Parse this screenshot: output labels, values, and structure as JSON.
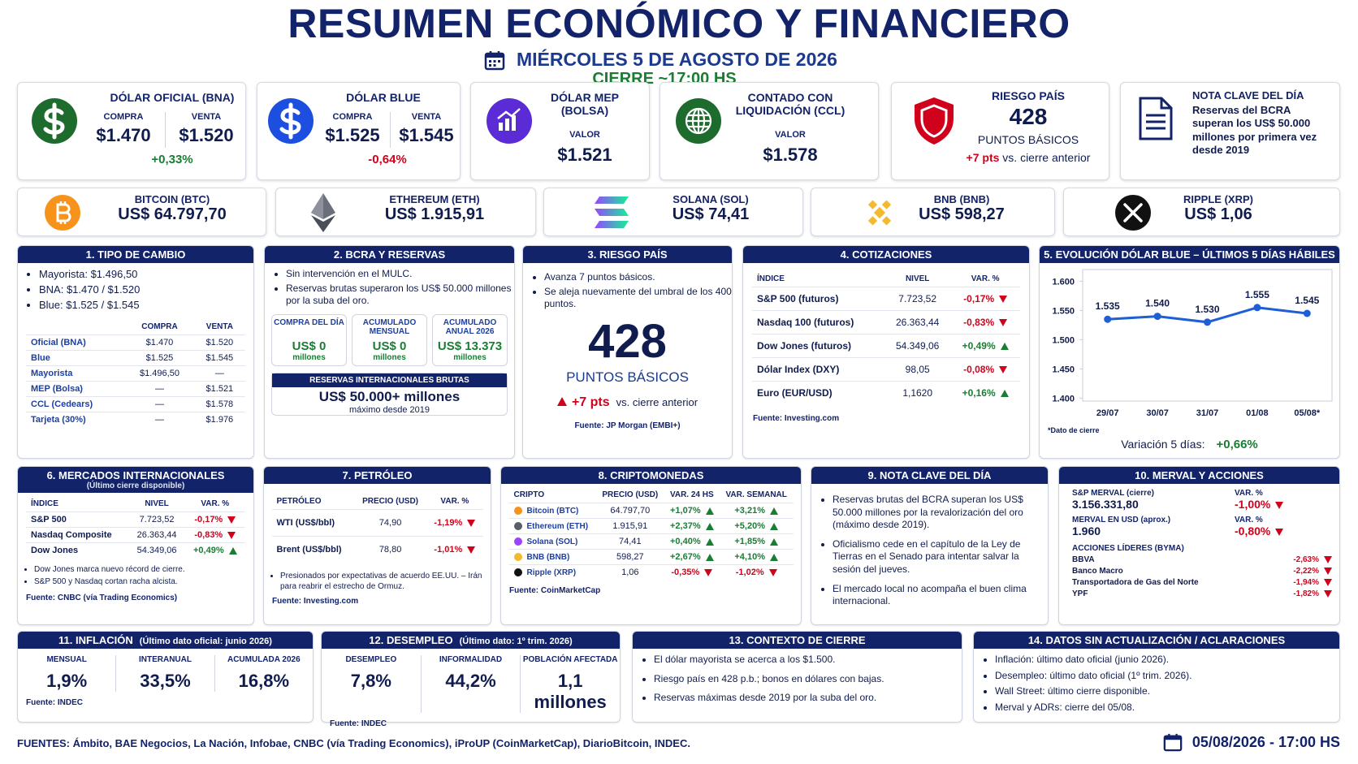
{
  "header": {
    "title": "RESUMEN ECONÓMICO Y FINANCIERO",
    "date": "MIÉRCOLES 5 DE AGOSTO DE 2026",
    "close": "CIERRE ~17:00 HS"
  },
  "top_cards": {
    "oficial": {
      "title": "DÓLAR OFICIAL (BNA)",
      "buy_label": "COMPRA",
      "buy": "$1.470",
      "sell_label": "VENTA",
      "sell": "$1.520",
      "change": "+0,33%"
    },
    "blue": {
      "title": "DÓLAR BLUE",
      "buy_label": "COMPRA",
      "buy": "$1.525",
      "sell_label": "VENTA",
      "sell": "$1.545",
      "change": "-0,64%"
    },
    "mep": {
      "title": "DÓLAR MEP (BOLSA)",
      "label": "VALOR",
      "value": "$1.521"
    },
    "ccl": {
      "title": "CONTADO CON LIQUIDACIÓN (CCL)",
      "label": "VALOR",
      "value": "$1.578"
    },
    "riesgo": {
      "title": "RIESGO PAÍS",
      "value": "428",
      "unit": "PUNTOS BÁSICOS",
      "change": "+7 pts",
      "note": "vs. cierre anterior"
    },
    "nota": {
      "title": "NOTA CLAVE DEL DÍA",
      "text": "Reservas del BCRA superan los US$ 50.000 millones por primera vez desde 2019"
    }
  },
  "crypto_cards": [
    {
      "name": "BITCOIN (BTC)",
      "price": "US$ 64.797,70"
    },
    {
      "name": "ETHEREUM (ETH)",
      "price": "US$ 1.915,91"
    },
    {
      "name": "SOLANA (SOL)",
      "price": "US$ 74,41"
    },
    {
      "name": "BNB (BNB)",
      "price": "US$ 598,27"
    },
    {
      "name": "RIPPLE (XRP)",
      "price": "US$ 1,06"
    }
  ],
  "tipo_cambio": {
    "title": "1. TIPO DE CAMBIO",
    "bullets": [
      "Mayorista: $1.496,50",
      "BNA: $1.470 / $1.520",
      "Blue: $1.525 / $1.545"
    ],
    "columns": [
      "COMPRA",
      "VENTA"
    ],
    "rows": [
      [
        "Oficial (BNA)",
        "$1.470",
        "$1.520"
      ],
      [
        "Blue",
        "$1.525",
        "$1.545"
      ],
      [
        "Mayorista",
        "$1.496,50",
        "—"
      ],
      [
        "MEP (Bolsa)",
        "—",
        "$1.521"
      ],
      [
        "CCL (Cedears)",
        "—",
        "$1.578"
      ],
      [
        "Tarjeta (30%)",
        "—",
        "$1.976"
      ]
    ]
  },
  "bcra": {
    "title": "2. BCRA Y RESERVAS",
    "bullets": [
      "Sin intervención en el MULC.",
      "Reservas brutas superaron los US$ 50.000 millones por la suba del oro."
    ],
    "boxes": [
      {
        "label": "COMPRA DEL DÍA",
        "value": "US$ 0",
        "unit": "millones"
      },
      {
        "label": "ACUMULADO MENSUAL",
        "value": "US$ 0",
        "unit": "millones"
      },
      {
        "label": "ACUMULADO ANUAL 2026",
        "value": "US$ 13.373",
        "unit": "millones"
      }
    ],
    "banner": {
      "title": "RESERVAS INTERNACIONALES BRUTAS",
      "value": "US$ 50.000+ millones",
      "note": "máximo desde 2019"
    }
  },
  "riesgo_pais": {
    "title": "3. RIESGO PAÍS",
    "bullets": [
      "Avanza 7 puntos básicos.",
      "Se aleja nuevamente del umbral de los 400 puntos."
    ],
    "value": "428",
    "unit": "PUNTOS BÁSICOS",
    "change": "+7 pts",
    "change_note": "vs. cierre anterior",
    "source": "Fuente: JP Morgan (EMBI+)"
  },
  "cotizaciones": {
    "title": "4. COTIZACIONES",
    "columns": [
      "ÍNDICE",
      "NIVEL",
      "VAR. %"
    ],
    "rows": [
      [
        "S&P 500 (futuros)",
        "7.723,52",
        "-0,17%"
      ],
      [
        "Nasdaq 100 (futuros)",
        "26.363,44",
        "-0,83%"
      ],
      [
        "Dow Jones (futuros)",
        "54.349,06",
        "+0,49%"
      ],
      [
        "Dólar Index (DXY)",
        "98,05",
        "-0,08%"
      ],
      [
        "Euro (EUR/USD)",
        "1,1620",
        "+0,16%"
      ]
    ],
    "source": "Fuente: Investing.com"
  },
  "chart_data": {
    "type": "line",
    "title": "5. EVOLUCIÓN DÓLAR BLUE – ÚLTIMOS 5 DÍAS HÁBILES",
    "categories": [
      "29/07",
      "30/07",
      "31/07",
      "01/08",
      "05/08*"
    ],
    "values": [
      1535,
      1540,
      1530,
      1555,
      1545
    ],
    "value_labels": [
      "1.535",
      "1.540",
      "1.530",
      "1.555",
      "1.545"
    ],
    "color": "#1f5fd6",
    "ylim": [
      1395,
      1620
    ],
    "yticks": [
      {
        "value": 1400,
        "label": "1.400"
      },
      {
        "value": 1450,
        "label": "1.450"
      },
      {
        "value": 1500,
        "label": "1.500"
      },
      {
        "value": 1550,
        "label": "1.550"
      },
      {
        "value": 1600,
        "label": "1.600"
      }
    ],
    "note": "*Dato de cierre",
    "summary_label": "Variación 5 días:",
    "summary_value": "+0,66%"
  },
  "mercados": {
    "title": "6. MERCADOS INTERNACIONALES",
    "subtitle": "(Último cierre disponible)",
    "columns": [
      "ÍNDICE",
      "NIVEL",
      "VAR. %"
    ],
    "rows": [
      [
        "S&P 500",
        "7.723,52",
        "-0,17%"
      ],
      [
        "Nasdaq Composite",
        "26.363,44",
        "-0,83%"
      ],
      [
        "Dow Jones",
        "54.349,06",
        "+0,49%"
      ]
    ],
    "bullets": [
      "Dow Jones marca nuevo récord de cierre.",
      "S&P 500 y Nasdaq cortan racha alcista."
    ],
    "source": "Fuente: CNBC (vía Trading Economics)"
  },
  "petroleo": {
    "title": "7. PETRÓLEO",
    "columns": [
      "PETRÓLEO",
      "PRECIO (USD)",
      "VAR. %"
    ],
    "rows": [
      [
        "WTI (US$/bbl)",
        "74,90",
        "-1,19%"
      ],
      [
        "Brent (US$/bbl)",
        "78,80",
        "-1,01%"
      ]
    ],
    "bullets": [
      "Presionados por expectativas de acuerdo EE.UU. – Irán para reabrir el estrecho de Ormuz."
    ],
    "source": "Fuente: Investing.com"
  },
  "cripto": {
    "title": "8. CRIPTOMONEDAS",
    "columns": [
      "CRIPTO",
      "PRECIO (USD)",
      "VAR. 24 HS",
      "VAR. SEMANAL"
    ],
    "rows": [
      [
        "Bitcoin (BTC)",
        "64.797,70",
        "+1,07%",
        "+3,21%"
      ],
      [
        "Ethereum (ETH)",
        "1.915,91",
        "+2,37%",
        "+5,20%"
      ],
      [
        "Solana (SOL)",
        "74,41",
        "+0,40%",
        "+1,85%"
      ],
      [
        "BNB (BNB)",
        "598,27",
        "+2,67%",
        "+4,10%"
      ],
      [
        "Ripple (XRP)",
        "1,06",
        "-0,35%",
        "-1,02%"
      ]
    ],
    "source": "Fuente: CoinMarketCap"
  },
  "nota_clave": {
    "title": "9. NOTA CLAVE DEL DÍA",
    "bullets": [
      "Reservas brutas del BCRA superan los US$ 50.000 millones por la revalorización del oro (máximo desde 2019).",
      "Oficialismo cede en el capítulo de la Ley de Tierras en el Senado para intentar salvar la sesión del jueves.",
      "El mercado local no acompaña el buen clima internacional."
    ]
  },
  "merval": {
    "title": "10. MERVAL Y ACCIONES",
    "rows": [
      {
        "label": "S&P MERVAL (cierre)",
        "value": "3.156.331,80",
        "var_label": "VAR. %",
        "var": "-1,00%"
      },
      {
        "label": "MERVAL EN USD (aprox.)",
        "value": "1.960",
        "var_label": "VAR. %",
        "var": "-0,80%"
      }
    ],
    "stocks_title": "ACCIONES LÍDERES (BYMA)",
    "stocks": [
      [
        "BBVA",
        "-2,63%"
      ],
      [
        "Banco Macro",
        "-2,22%"
      ],
      [
        "Transportadora de Gas del Norte",
        "-1,94%"
      ],
      [
        "YPF",
        "-1,82%"
      ]
    ]
  },
  "inflacion": {
    "title": "11. INFLACIÓN",
    "subtitle": "(Último dato oficial: junio 2026)",
    "stats": [
      {
        "label": "MENSUAL",
        "value": "1,9%"
      },
      {
        "label": "INTERANUAL",
        "value": "33,5%"
      },
      {
        "label": "ACUMULADA 2026",
        "value": "16,8%"
      }
    ],
    "source": "Fuente: INDEC"
  },
  "desempleo": {
    "title": "12. DESEMPLEO",
    "subtitle": "(Último dato: 1º trim. 2026)",
    "stats": [
      {
        "label": "DESEMPLEO",
        "value": "7,8%"
      },
      {
        "label": "INFORMALIDAD",
        "value": "44,2%"
      },
      {
        "label": "POBLACIÓN AFECTADA",
        "value": "1,1 millones"
      }
    ],
    "source": "Fuente: INDEC"
  },
  "contexto": {
    "title": "13. CONTEXTO DE CIERRE",
    "bullets": [
      "El dólar mayorista se acerca a los $1.500.",
      "Riesgo país en 428 p.b.; bonos en dólares con bajas.",
      "Reservas máximas desde 2019 por la suba del oro."
    ]
  },
  "aclaraciones": {
    "title": "14. DATOS SIN ACTUALIZACIÓN / ACLARACIONES",
    "bullets": [
      "Inflación: último dato oficial (junio 2026).",
      "Desempleo: último dato oficial (1º trim. 2026).",
      "Wall Street: último cierre disponible.",
      "Merval y ADRs: cierre del 05/08."
    ]
  },
  "footer": {
    "sources": "FUENTES: Ámbito, BAE Negocios, La Nación, Infobae, CNBC (vía Trading Economics), iProUP (CoinMarketCap), DiarioBitcoin, INDEC.",
    "timestamp": "05/08/2026 - 17:00 HS"
  }
}
